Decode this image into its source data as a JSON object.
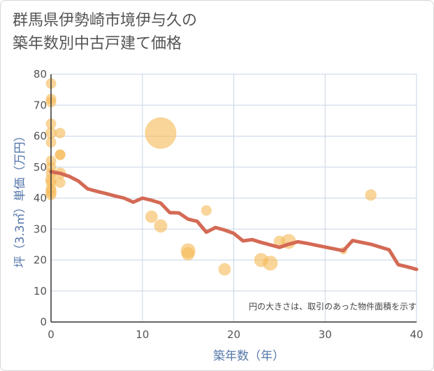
{
  "title_lines": [
    "群馬県伊勢崎市境伊与久の",
    "築年数別中古戸建て価格"
  ],
  "colors": {
    "bubble": "#f5b955",
    "line": "#d46a55",
    "grid": "#c8d6e6",
    "axis_text": "#5577aa"
  },
  "chart_data": {
    "type": "scatter",
    "title": "群馬県伊勢崎市境伊与久の築年数別中古戸建て価格",
    "xlabel": "築年数（年）",
    "ylabel": "坪（3.3㎡）単価（万円）",
    "xlim": [
      0,
      40
    ],
    "ylim": [
      0,
      80
    ],
    "xticks": [
      0,
      10,
      20,
      30,
      40
    ],
    "yticks": [
      0,
      10,
      20,
      30,
      40,
      50,
      60,
      70,
      80
    ],
    "annotation": "円の大きさは、取引のあった物件面積を示す",
    "scatter": [
      {
        "x": 0,
        "y": 77,
        "size": 1
      },
      {
        "x": 0,
        "y": 72,
        "size": 1
      },
      {
        "x": 0,
        "y": 71,
        "size": 1
      },
      {
        "x": 0,
        "y": 64,
        "size": 1
      },
      {
        "x": 0,
        "y": 61,
        "size": 1.2
      },
      {
        "x": 0,
        "y": 58,
        "size": 1
      },
      {
        "x": 0,
        "y": 52,
        "size": 1
      },
      {
        "x": 0,
        "y": 50,
        "size": 1
      },
      {
        "x": 0,
        "y": 48,
        "size": 1
      },
      {
        "x": 0,
        "y": 46,
        "size": 1.2
      },
      {
        "x": 0,
        "y": 45,
        "size": 1
      },
      {
        "x": 0,
        "y": 43,
        "size": 1
      },
      {
        "x": 0,
        "y": 42,
        "size": 1.2
      },
      {
        "x": 0,
        "y": 41,
        "size": 1
      },
      {
        "x": 1,
        "y": 61,
        "size": 1
      },
      {
        "x": 1,
        "y": 54,
        "size": 1
      },
      {
        "x": 1,
        "y": 54,
        "size": 1
      },
      {
        "x": 1,
        "y": 48,
        "size": 1.2
      },
      {
        "x": 1,
        "y": 45,
        "size": 1
      },
      {
        "x": 12,
        "y": 61,
        "size": 9
      },
      {
        "x": 11,
        "y": 34,
        "size": 1.4
      },
      {
        "x": 12,
        "y": 31,
        "size": 1.6
      },
      {
        "x": 15,
        "y": 23,
        "size": 2
      },
      {
        "x": 15,
        "y": 22,
        "size": 1.6
      },
      {
        "x": 17,
        "y": 36,
        "size": 1
      },
      {
        "x": 19,
        "y": 17,
        "size": 1.4
      },
      {
        "x": 23,
        "y": 20,
        "size": 1.8
      },
      {
        "x": 24,
        "y": 19,
        "size": 2
      },
      {
        "x": 25,
        "y": 26,
        "size": 1.2
      },
      {
        "x": 26,
        "y": 26,
        "size": 2
      },
      {
        "x": 32,
        "y": 23,
        "size": 0.5
      },
      {
        "x": 35,
        "y": 41,
        "size": 1.2
      }
    ],
    "trend_line": {
      "x": [
        0,
        1,
        2,
        3,
        4,
        5,
        6,
        7,
        8,
        9,
        10,
        11,
        12,
        13,
        14,
        15,
        16,
        17,
        18,
        19,
        20,
        21,
        22,
        23,
        24,
        25,
        26,
        27,
        28,
        29,
        30,
        31,
        32,
        33,
        34,
        35,
        36,
        37,
        38,
        39,
        40
      ],
      "y": [
        48.5,
        48,
        47,
        45.5,
        43,
        42.2,
        41.5,
        40.7,
        40,
        38.7,
        40,
        39.3,
        38.4,
        35.3,
        35.2,
        33.2,
        32.5,
        29,
        30.5,
        29.7,
        28.6,
        26.2,
        26.6,
        25.7,
        24.9,
        24.1,
        25.1,
        25.9,
        25.4,
        24.8,
        24.2,
        23.6,
        23,
        26.3,
        25.7,
        25.1,
        24.2,
        23.3,
        18.5,
        17.8,
        17
      ]
    }
  }
}
